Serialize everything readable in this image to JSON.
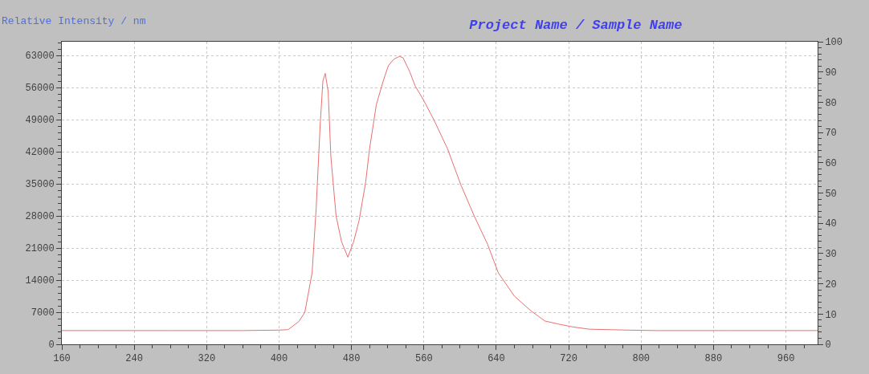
{
  "chart_data": {
    "type": "line",
    "title": "Project Name / Sample Name",
    "ylabel": "Relative Intensity / nm",
    "x": [
      160,
      200,
      240,
      280,
      320,
      360,
      400,
      410,
      422,
      428.5,
      436.5,
      441,
      445.4,
      448.4,
      451,
      454.3,
      457.2,
      463,
      469,
      476,
      482.4,
      488.3,
      495.7,
      500,
      507.5,
      515,
      520.8,
      526.8,
      533,
      537,
      544.5,
      550.5,
      559.3,
      571.2,
      586,
      600.8,
      615.6,
      630.4,
      642.2,
      660,
      678.3,
      693.6,
      708.8,
      724.3,
      742.6,
      785.6,
      815.9,
      900,
      995
    ],
    "series": [
      {
        "color": "#e87070",
        "values": [
          3000,
          3000,
          3000,
          3000,
          3000,
          3000,
          3100,
          3200,
          5000,
          7000,
          15600,
          29700,
          47800,
          57400,
          59100,
          55100,
          41000,
          28000,
          22400,
          19000,
          22400,
          26900,
          35400,
          42700,
          52300,
          57400,
          60800,
          62200,
          62800,
          62500,
          59400,
          56300,
          53400,
          48900,
          42700,
          34800,
          28000,
          21800,
          15600,
          10500,
          7300,
          5100,
          4400,
          3800,
          3300,
          3100,
          3000,
          3000,
          3000
        ]
      }
    ],
    "xlim": [
      160,
      995
    ],
    "xticks": [
      160,
      240,
      320,
      400,
      480,
      560,
      640,
      720,
      800,
      880,
      960
    ],
    "ylim": [
      0,
      66000
    ],
    "yticks": [
      0,
      7000,
      14000,
      21000,
      28000,
      35000,
      42000,
      49000,
      56000,
      63000
    ],
    "y2lim": [
      0,
      100
    ],
    "y2ticks": [
      0,
      10,
      20,
      30,
      40,
      50,
      60,
      70,
      80,
      90,
      100
    ],
    "grid": true,
    "legend": false,
    "marker": "none",
    "line_style": "solid"
  }
}
